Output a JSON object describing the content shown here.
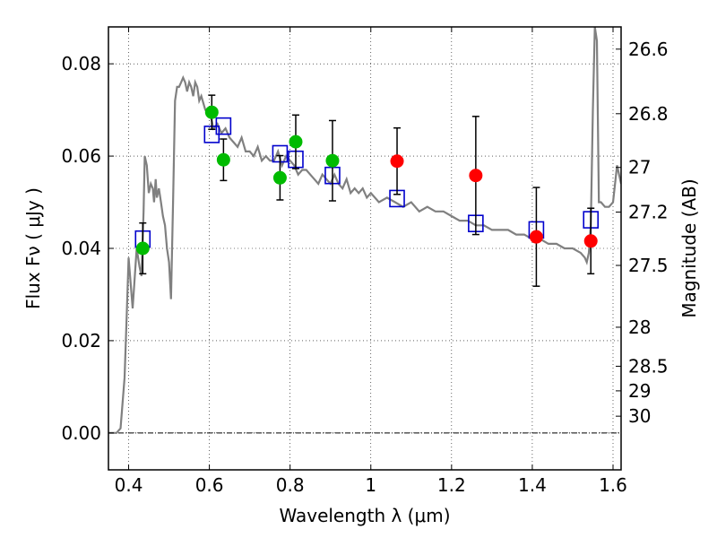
{
  "chart_data": {
    "type": "scatter",
    "xlabel": "Wavelength  λ (μm)",
    "ylabel": "Flux  Fν  ( μJy )",
    "y2label": "Magnitude (AB)",
    "xlim": [
      0.35,
      1.62
    ],
    "ylim": [
      -0.008,
      0.088
    ],
    "grid": true,
    "x_ticks": [
      0.4,
      0.6,
      0.8,
      1.0,
      1.2,
      1.4,
      1.6
    ],
    "x_tick_labels": [
      "0.4",
      "0.6",
      "0.8",
      "1",
      "1.2",
      "1.4",
      "1.6"
    ],
    "y_ticks": [
      0.0,
      0.02,
      0.04,
      0.06,
      0.08
    ],
    "y_tick_labels": [
      "0.00",
      "0.02",
      "0.04",
      "0.06",
      "0.08"
    ],
    "mag_ticks": [
      26.6,
      26.8,
      27.0,
      27.2,
      27.5,
      28.0,
      28.5,
      29.0,
      30.0
    ],
    "mag_tick_labels": [
      "26.6",
      "26.8",
      "27",
      "27.2",
      "27.5",
      "28",
      "28.5",
      "29",
      "30"
    ],
    "colors": {
      "detected": "#00bb00",
      "upper": "#ff0000",
      "model_box": "#0000cc",
      "spectrum": "#808080",
      "errorbar": "#000000"
    },
    "series": [
      {
        "marker": "circle",
        "color": "#00bb00",
        "points": [
          {
            "x": 0.435,
            "y": 0.04,
            "yerr": 0.0055
          },
          {
            "x": 0.606,
            "y": 0.0695,
            "yerr": 0.0037
          },
          {
            "x": 0.635,
            "y": 0.0592,
            "yerr": 0.0045
          },
          {
            "x": 0.775,
            "y": 0.0553,
            "yerr": 0.0048
          },
          {
            "x": 0.814,
            "y": 0.0631,
            "yerr": 0.0058
          },
          {
            "x": 0.905,
            "y": 0.059,
            "yerr": 0.0087
          }
        ]
      },
      {
        "marker": "circle",
        "color": "#ff0000",
        "points": [
          {
            "x": 1.065,
            "y": 0.0589,
            "yerr": 0.0072
          },
          {
            "x": 1.26,
            "y": 0.0558,
            "yerr": 0.0128
          },
          {
            "x": 1.41,
            "y": 0.0425,
            "yerr": 0.0107
          },
          {
            "x": 1.545,
            "y": 0.0416,
            "yerr": 0.0071
          }
        ]
      },
      {
        "marker": "square",
        "color": "#0000cc",
        "points": [
          {
            "x": 0.435,
            "y": 0.042
          },
          {
            "x": 0.606,
            "y": 0.0647
          },
          {
            "x": 0.635,
            "y": 0.0665
          },
          {
            "x": 0.775,
            "y": 0.0605
          },
          {
            "x": 0.814,
            "y": 0.0593
          },
          {
            "x": 0.905,
            "y": 0.0558
          },
          {
            "x": 1.065,
            "y": 0.0508
          },
          {
            "x": 1.26,
            "y": 0.0454
          },
          {
            "x": 1.41,
            "y": 0.044
          },
          {
            "x": 1.545,
            "y": 0.0462
          }
        ]
      },
      {
        "marker": "line",
        "color": "#808080",
        "x": [
          0.35,
          0.37,
          0.38,
          0.39,
          0.395,
          0.4,
          0.41,
          0.42,
          0.427,
          0.432,
          0.437,
          0.44,
          0.445,
          0.45,
          0.455,
          0.46,
          0.463,
          0.467,
          0.47,
          0.475,
          0.48,
          0.485,
          0.49,
          0.495,
          0.5,
          0.505,
          0.51,
          0.515,
          0.52,
          0.525,
          0.53,
          0.535,
          0.54,
          0.545,
          0.55,
          0.555,
          0.56,
          0.565,
          0.57,
          0.575,
          0.58,
          0.59,
          0.6,
          0.605,
          0.61,
          0.62,
          0.63,
          0.64,
          0.65,
          0.66,
          0.67,
          0.68,
          0.69,
          0.7,
          0.71,
          0.72,
          0.73,
          0.74,
          0.75,
          0.76,
          0.77,
          0.78,
          0.79,
          0.8,
          0.81,
          0.82,
          0.83,
          0.84,
          0.85,
          0.86,
          0.87,
          0.88,
          0.89,
          0.9,
          0.91,
          0.92,
          0.93,
          0.94,
          0.95,
          0.96,
          0.97,
          0.98,
          0.99,
          1.0,
          1.02,
          1.04,
          1.06,
          1.08,
          1.1,
          1.12,
          1.14,
          1.16,
          1.18,
          1.2,
          1.22,
          1.24,
          1.26,
          1.28,
          1.3,
          1.32,
          1.34,
          1.36,
          1.38,
          1.4,
          1.42,
          1.44,
          1.46,
          1.48,
          1.5,
          1.52,
          1.53,
          1.535,
          1.54,
          1.545,
          1.55,
          1.555,
          1.56,
          1.565,
          1.57,
          1.58,
          1.59,
          1.6,
          1.61,
          1.62
        ],
        "y": [
          0.0,
          0.0,
          0.001,
          0.012,
          0.025,
          0.038,
          0.027,
          0.04,
          0.036,
          0.034,
          0.048,
          0.06,
          0.058,
          0.052,
          0.054,
          0.053,
          0.05,
          0.055,
          0.051,
          0.053,
          0.05,
          0.047,
          0.045,
          0.04,
          0.037,
          0.029,
          0.05,
          0.072,
          0.075,
          0.075,
          0.076,
          0.077,
          0.076,
          0.074,
          0.076,
          0.075,
          0.073,
          0.076,
          0.075,
          0.072,
          0.073,
          0.07,
          0.069,
          0.068,
          0.066,
          0.067,
          0.065,
          0.066,
          0.064,
          0.063,
          0.062,
          0.064,
          0.061,
          0.061,
          0.06,
          0.062,
          0.059,
          0.06,
          0.059,
          0.059,
          0.061,
          0.058,
          0.06,
          0.059,
          0.058,
          0.056,
          0.057,
          0.057,
          0.056,
          0.055,
          0.054,
          0.056,
          0.055,
          0.054,
          0.056,
          0.054,
          0.053,
          0.055,
          0.052,
          0.053,
          0.052,
          0.053,
          0.051,
          0.052,
          0.05,
          0.051,
          0.05,
          0.049,
          0.05,
          0.048,
          0.049,
          0.048,
          0.048,
          0.047,
          0.046,
          0.046,
          0.045,
          0.045,
          0.044,
          0.044,
          0.044,
          0.043,
          0.043,
          0.042,
          0.042,
          0.041,
          0.041,
          0.04,
          0.04,
          0.039,
          0.038,
          0.037,
          0.039,
          0.045,
          0.07,
          0.088,
          0.085,
          0.05,
          0.05,
          0.049,
          0.049,
          0.05,
          0.058,
          0.054
        ]
      }
    ]
  }
}
